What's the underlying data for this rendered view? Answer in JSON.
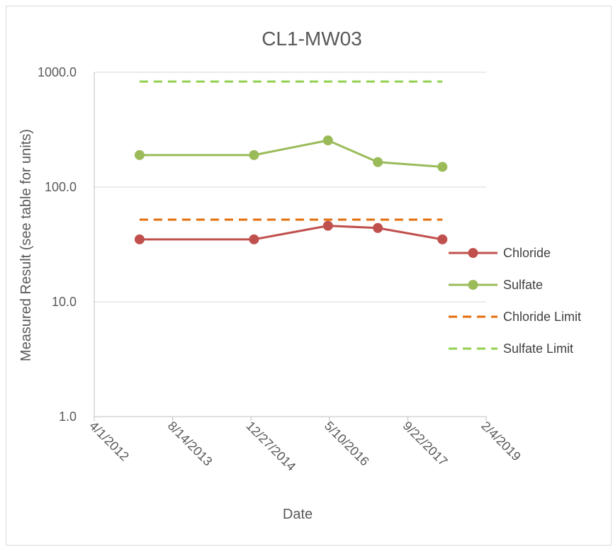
{
  "chart_data": {
    "type": "line",
    "title": "CL1-MW03",
    "xlabel": "Date",
    "ylabel": "Measured Result (see table for units)",
    "y_scale": "log",
    "ylim": [
      1.0,
      1000.0
    ],
    "y_ticks": [
      "1.0",
      "10.0",
      "100.0",
      "1000.0"
    ],
    "xlim": [
      "2012-04-01",
      "2019-02-04"
    ],
    "x_ticks": [
      "4/1/2012",
      "8/14/2013",
      "12/27/2014",
      "5/10/2016",
      "9/22/2017",
      "2/4/2019"
    ],
    "grid": true,
    "legend": "right",
    "series": [
      {
        "name": "Chloride",
        "color": "#c0504d",
        "style": "solid-marker",
        "x": [
          "2013-01-15",
          "2015-01-15",
          "2016-05-01",
          "2017-03-15",
          "2018-05-01"
        ],
        "values": [
          35,
          35,
          46,
          44,
          35
        ]
      },
      {
        "name": "Sulfate",
        "color": "#9bbb59",
        "style": "solid-marker",
        "x": [
          "2013-01-15",
          "2015-01-15",
          "2016-05-01",
          "2017-03-15",
          "2018-05-01"
        ],
        "values": [
          190,
          190,
          255,
          165,
          150
        ]
      },
      {
        "name": "Chloride Limit",
        "color": "#e36c09",
        "style": "dashed",
        "x": [
          "2013-01-15",
          "2018-05-01"
        ],
        "values": [
          52,
          52
        ]
      },
      {
        "name": "Sulfate Limit",
        "color": "#92d050",
        "style": "dashed",
        "x": [
          "2013-01-15",
          "2018-05-01"
        ],
        "values": [
          830,
          830
        ]
      }
    ]
  }
}
